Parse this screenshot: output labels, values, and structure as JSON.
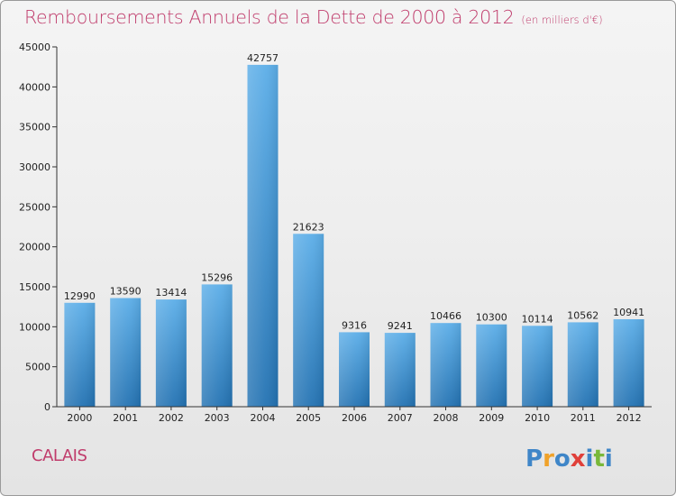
{
  "page": {
    "title": "Remboursements Annuels de la Dette de 2000 à 2012",
    "unit": "(en milliers d'€)",
    "city": "CALAIS",
    "logo_text": "Proxiti"
  },
  "colors": {
    "title": "#c03c6c",
    "bar_light": "#5aaae6",
    "bar_dark": "#2478b8",
    "axis": "#333333",
    "grid_tick": "#333333"
  },
  "chart_data": {
    "type": "bar",
    "title": "Remboursements Annuels de la Dette de 2000 à 2012",
    "subtitle": "(en milliers d'€)",
    "xlabel": "",
    "ylabel": "",
    "categories": [
      "2000",
      "2001",
      "2002",
      "2003",
      "2004",
      "2005",
      "2006",
      "2007",
      "2008",
      "2009",
      "2010",
      "2011",
      "2012"
    ],
    "values": [
      12990,
      13590,
      13414,
      15296,
      42757,
      21623,
      9316,
      9241,
      10466,
      10300,
      10114,
      10562,
      10941
    ],
    "ylim": [
      0,
      45000
    ],
    "yticks": [
      0,
      5000,
      10000,
      15000,
      20000,
      25000,
      30000,
      35000,
      40000,
      45000
    ],
    "grid": false,
    "legend": "none",
    "data_labels": true
  }
}
